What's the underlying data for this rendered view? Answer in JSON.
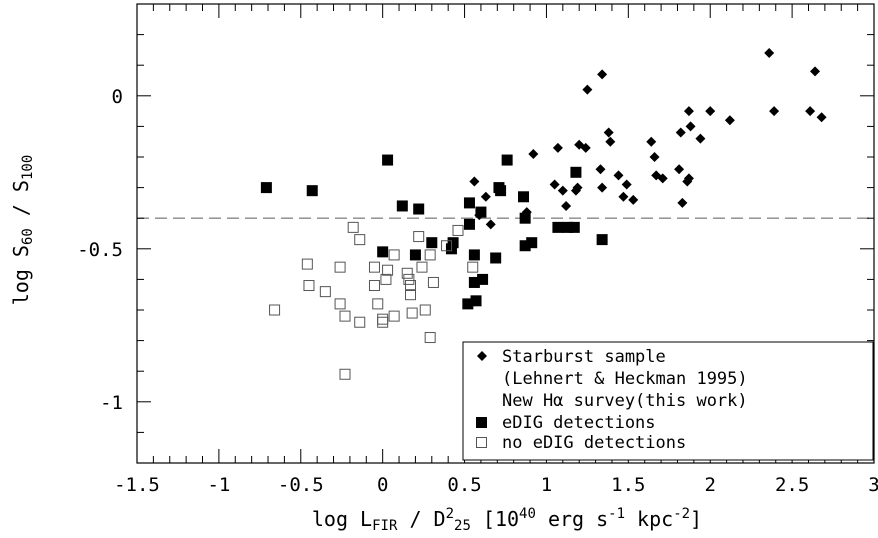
{
  "chart_data": {
    "type": "scatter",
    "title": "",
    "xlabel_parts": {
      "a": "log L",
      "a_sub": "FIR",
      "b": " / D",
      "b_sup": "2",
      "b_sub": "25",
      "c": " [10",
      "c_sup": "40",
      "d": " erg s",
      "d_sup": "-1",
      "e": " kpc",
      "e_sup": "-2",
      "f": "]"
    },
    "ylabel_parts": {
      "a": "log S",
      "a_sub": "60",
      "b": " / S",
      "b_sub": "100"
    },
    "xlim": [
      -1.5,
      3.0
    ],
    "ylim": [
      -1.2,
      0.3
    ],
    "x_ticks": [
      {
        "v": -1.5,
        "label": "-1.5"
      },
      {
        "v": -1,
        "label": "-1"
      },
      {
        "v": -0.5,
        "label": "-0.5"
      },
      {
        "v": 0,
        "label": "0"
      },
      {
        "v": 0.5,
        "label": "0.5"
      },
      {
        "v": 1,
        "label": "1"
      },
      {
        "v": 1.5,
        "label": "1.5"
      },
      {
        "v": 2,
        "label": "2"
      },
      {
        "v": 2.5,
        "label": "2.5"
      },
      {
        "v": 3,
        "label": "3"
      }
    ],
    "y_ticks": [
      {
        "v": 0,
        "label": "0"
      },
      {
        "v": -0.5,
        "label": "-0.5"
      },
      {
        "v": -1,
        "label": "-1"
      }
    ],
    "reference_line": {
      "y": -0.4,
      "style": "dashed",
      "color": "#888888"
    },
    "grid": false,
    "legend_position": "bottom-right",
    "legend_items": [
      {
        "marker": "diamond",
        "lines": [
          "Starburst sample",
          "(Lehnert & Heckman 1995)"
        ]
      },
      {
        "marker": "none",
        "lines": [
          "New Hα survey(this work)"
        ]
      },
      {
        "marker": "filled-square",
        "lines": [
          "eDIG detections"
        ]
      },
      {
        "marker": "open-square",
        "lines": [
          "no eDIG detections"
        ]
      }
    ],
    "series": [
      {
        "name": "Starburst sample",
        "marker": "diamond",
        "color": "#000000",
        "points": [
          [
            2.36,
            0.14
          ],
          [
            2.64,
            0.08
          ],
          [
            1.34,
            0.07
          ],
          [
            1.25,
            0.02
          ],
          [
            2.39,
            -0.05
          ],
          [
            2.61,
            -0.05
          ],
          [
            2.68,
            -0.07
          ],
          [
            1.87,
            -0.05
          ],
          [
            2.0,
            -0.05
          ],
          [
            2.12,
            -0.08
          ],
          [
            1.88,
            -0.1
          ],
          [
            1.82,
            -0.12
          ],
          [
            1.94,
            -0.14
          ],
          [
            1.38,
            -0.12
          ],
          [
            1.39,
            -0.15
          ],
          [
            1.64,
            -0.15
          ],
          [
            1.07,
            -0.17
          ],
          [
            1.2,
            -0.16
          ],
          [
            1.24,
            -0.17
          ],
          [
            0.92,
            -0.19
          ],
          [
            1.66,
            -0.2
          ],
          [
            1.33,
            -0.24
          ],
          [
            1.67,
            -0.26
          ],
          [
            1.71,
            -0.27
          ],
          [
            1.81,
            -0.24
          ],
          [
            1.87,
            -0.27
          ],
          [
            1.86,
            -0.28
          ],
          [
            1.44,
            -0.26
          ],
          [
            1.49,
            -0.29
          ],
          [
            1.34,
            -0.3
          ],
          [
            1.19,
            -0.3
          ],
          [
            1.18,
            -0.31
          ],
          [
            1.05,
            -0.29
          ],
          [
            1.1,
            -0.31
          ],
          [
            0.56,
            -0.28
          ],
          [
            0.63,
            -0.33
          ],
          [
            1.47,
            -0.33
          ],
          [
            1.53,
            -0.34
          ],
          [
            1.12,
            -0.36
          ],
          [
            1.83,
            -0.35
          ],
          [
            0.88,
            -0.38
          ],
          [
            0.59,
            -0.39
          ],
          [
            0.66,
            -0.42
          ]
        ]
      },
      {
        "name": "eDIG detections",
        "marker": "filled-square",
        "color": "#000000",
        "points": [
          [
            -0.71,
            -0.3
          ],
          [
            -0.43,
            -0.31
          ],
          [
            0.03,
            -0.21
          ],
          [
            0.12,
            -0.36
          ],
          [
            0.22,
            -0.37
          ],
          [
            0.0,
            -0.51
          ],
          [
            0.2,
            -0.52
          ],
          [
            0.3,
            -0.48
          ],
          [
            0.42,
            -0.5
          ],
          [
            0.43,
            -0.48
          ],
          [
            0.53,
            -0.35
          ],
          [
            0.6,
            -0.38
          ],
          [
            0.53,
            -0.42
          ],
          [
            0.72,
            -0.31
          ],
          [
            0.71,
            -0.3
          ],
          [
            0.76,
            -0.21
          ],
          [
            0.86,
            -0.33
          ],
          [
            0.87,
            -0.4
          ],
          [
            0.91,
            -0.48
          ],
          [
            0.87,
            -0.49
          ],
          [
            0.56,
            -0.52
          ],
          [
            0.56,
            -0.61
          ],
          [
            0.61,
            -0.6
          ],
          [
            0.69,
            -0.53
          ],
          [
            0.52,
            -0.68
          ],
          [
            0.57,
            -0.67
          ],
          [
            1.07,
            -0.43
          ],
          [
            1.13,
            -0.43
          ],
          [
            1.17,
            -0.43
          ],
          [
            1.18,
            -0.25
          ],
          [
            1.34,
            -0.47
          ]
        ]
      },
      {
        "name": "no eDIG detections",
        "marker": "open-square",
        "color": "#555555",
        "points": [
          [
            -0.66,
            -0.7
          ],
          [
            -0.46,
            -0.55
          ],
          [
            -0.45,
            -0.62
          ],
          [
            -0.35,
            -0.64
          ],
          [
            -0.26,
            -0.56
          ],
          [
            -0.26,
            -0.68
          ],
          [
            -0.23,
            -0.72
          ],
          [
            -0.23,
            -0.91
          ],
          [
            -0.18,
            -0.43
          ],
          [
            -0.14,
            -0.47
          ],
          [
            -0.14,
            -0.74
          ],
          [
            -0.05,
            -0.56
          ],
          [
            -0.05,
            -0.62
          ],
          [
            -0.03,
            -0.68
          ],
          [
            0.0,
            -0.73
          ],
          [
            0.0,
            -0.74
          ],
          [
            0.02,
            -0.6
          ],
          [
            0.03,
            -0.57
          ],
          [
            0.07,
            -0.52
          ],
          [
            0.07,
            -0.72
          ],
          [
            0.15,
            -0.58
          ],
          [
            0.16,
            -0.6
          ],
          [
            0.17,
            -0.62
          ],
          [
            0.17,
            -0.65
          ],
          [
            0.18,
            -0.71
          ],
          [
            0.22,
            -0.46
          ],
          [
            0.24,
            -0.56
          ],
          [
            0.26,
            -0.7
          ],
          [
            0.29,
            -0.52
          ],
          [
            0.29,
            -0.79
          ],
          [
            0.31,
            -0.61
          ],
          [
            0.39,
            -0.49
          ],
          [
            0.46,
            -0.44
          ],
          [
            0.55,
            -0.56
          ]
        ]
      }
    ]
  }
}
